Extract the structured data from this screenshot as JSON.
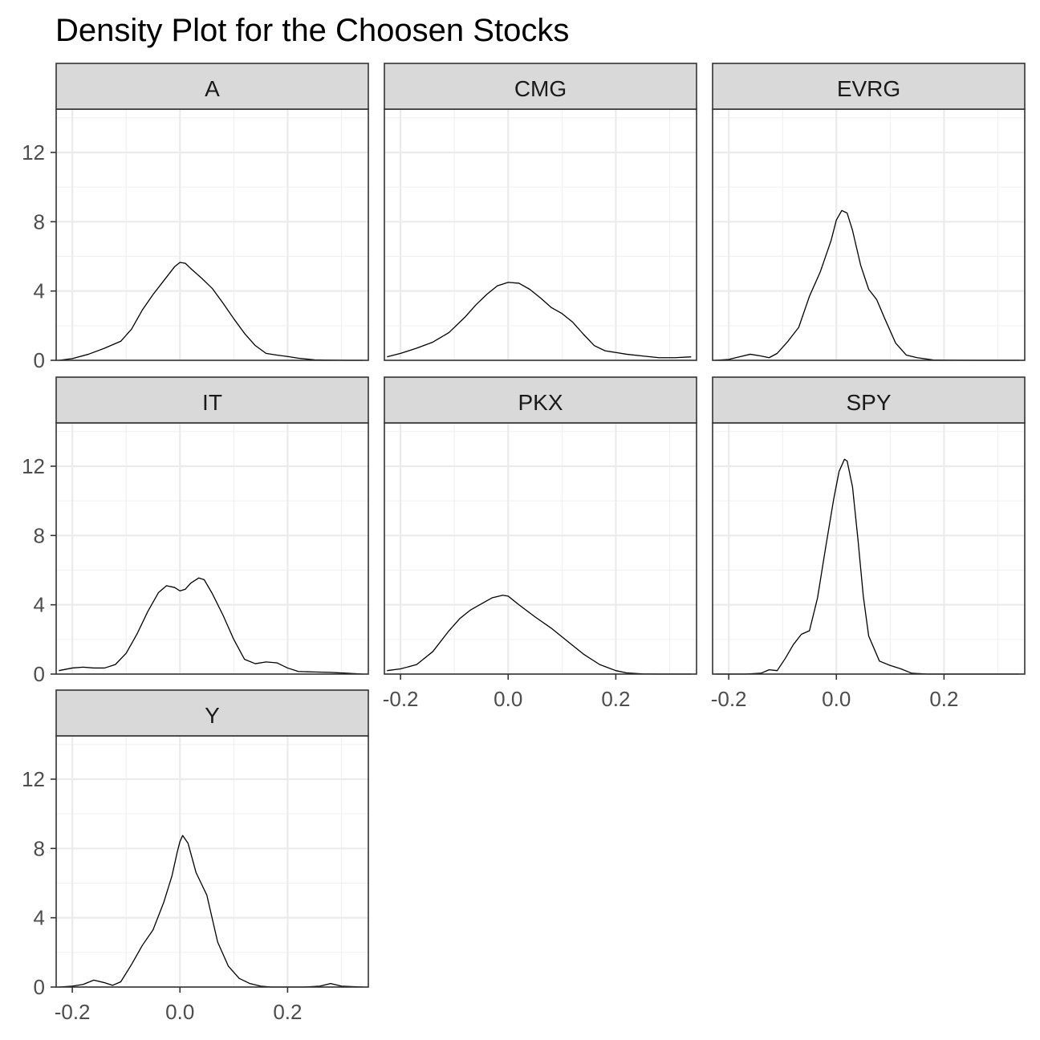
{
  "chart_data": {
    "type": "line",
    "title": "Density Plot for the Choosen Stocks",
    "xlabel": "",
    "ylabel": "",
    "xlim": [
      -0.23,
      0.35
    ],
    "ylim": [
      0,
      14.5
    ],
    "x_ticks": [
      -0.2,
      0.0,
      0.2
    ],
    "x_tick_labels": [
      "-0.2",
      "0.0",
      "0.2"
    ],
    "y_ticks": [
      0,
      4,
      8,
      12
    ],
    "y_tick_labels": [
      "0",
      "4",
      "8",
      "12"
    ],
    "grid": true,
    "legend": "none",
    "line_color": "#000000",
    "strip_fill": "#d9d9d9",
    "series": [
      {
        "name": "A",
        "x": [
          -0.225,
          -0.2,
          -0.17,
          -0.14,
          -0.11,
          -0.09,
          -0.07,
          -0.05,
          -0.03,
          -0.01,
          0.0,
          0.01,
          0.02,
          0.04,
          0.06,
          0.08,
          0.1,
          0.12,
          0.14,
          0.16,
          0.18,
          0.2,
          0.22,
          0.25,
          0.28,
          0.31,
          0.34
        ],
        "y": [
          0.0,
          0.1,
          0.35,
          0.7,
          1.1,
          1.8,
          2.9,
          3.8,
          4.6,
          5.4,
          5.65,
          5.6,
          5.3,
          4.75,
          4.15,
          3.3,
          2.4,
          1.55,
          0.85,
          0.4,
          0.3,
          0.22,
          0.12,
          0.03,
          0.01,
          0.0,
          0.0
        ]
      },
      {
        "name": "CMG",
        "x": [
          -0.225,
          -0.2,
          -0.17,
          -0.14,
          -0.11,
          -0.08,
          -0.06,
          -0.04,
          -0.02,
          0.0,
          0.02,
          0.04,
          0.06,
          0.08,
          0.1,
          0.12,
          0.14,
          0.16,
          0.18,
          0.2,
          0.22,
          0.25,
          0.28,
          0.31,
          0.34
        ],
        "y": [
          0.2,
          0.4,
          0.7,
          1.05,
          1.6,
          2.5,
          3.2,
          3.8,
          4.3,
          4.5,
          4.45,
          4.1,
          3.6,
          3.05,
          2.7,
          2.2,
          1.5,
          0.85,
          0.55,
          0.45,
          0.35,
          0.25,
          0.15,
          0.15,
          0.2
        ]
      },
      {
        "name": "EVRG",
        "x": [
          -0.225,
          -0.2,
          -0.18,
          -0.16,
          -0.14,
          -0.125,
          -0.11,
          -0.09,
          -0.07,
          -0.05,
          -0.03,
          -0.01,
          0.0,
          0.01,
          0.02,
          0.03,
          0.045,
          0.06,
          0.075,
          0.09,
          0.11,
          0.13,
          0.15,
          0.18,
          0.2,
          0.25,
          0.3,
          0.34
        ],
        "y": [
          0.0,
          0.05,
          0.2,
          0.35,
          0.25,
          0.15,
          0.4,
          1.1,
          1.9,
          3.7,
          5.1,
          6.9,
          8.1,
          8.65,
          8.5,
          7.5,
          5.5,
          4.1,
          3.5,
          2.4,
          1.0,
          0.3,
          0.15,
          0.02,
          0.01,
          0.0,
          0.0,
          0.0
        ]
      },
      {
        "name": "IT",
        "x": [
          -0.225,
          -0.2,
          -0.18,
          -0.16,
          -0.14,
          -0.12,
          -0.1,
          -0.08,
          -0.06,
          -0.04,
          -0.025,
          -0.01,
          0.0,
          0.01,
          0.02,
          0.035,
          0.045,
          0.06,
          0.08,
          0.1,
          0.12,
          0.14,
          0.16,
          0.18,
          0.2,
          0.22,
          0.25,
          0.28,
          0.31,
          0.34
        ],
        "y": [
          0.2,
          0.35,
          0.4,
          0.35,
          0.35,
          0.55,
          1.2,
          2.3,
          3.6,
          4.7,
          5.1,
          5.0,
          4.8,
          4.9,
          5.25,
          5.55,
          5.45,
          4.65,
          3.4,
          2.0,
          0.85,
          0.6,
          0.7,
          0.65,
          0.35,
          0.15,
          0.12,
          0.1,
          0.05,
          0.0
        ]
      },
      {
        "name": "PKX",
        "x": [
          -0.225,
          -0.2,
          -0.17,
          -0.14,
          -0.11,
          -0.09,
          -0.07,
          -0.05,
          -0.03,
          -0.01,
          0.0,
          0.02,
          0.05,
          0.08,
          0.11,
          0.14,
          0.17,
          0.2,
          0.22,
          0.25,
          0.28,
          0.31,
          0.34
        ],
        "y": [
          0.2,
          0.3,
          0.55,
          1.3,
          2.5,
          3.2,
          3.7,
          4.05,
          4.4,
          4.55,
          4.5,
          4.0,
          3.3,
          2.65,
          1.9,
          1.15,
          0.55,
          0.2,
          0.07,
          0.01,
          0.0,
          0.0,
          0.0
        ]
      },
      {
        "name": "SPY",
        "x": [
          -0.225,
          -0.2,
          -0.17,
          -0.14,
          -0.125,
          -0.11,
          -0.095,
          -0.08,
          -0.065,
          -0.05,
          -0.035,
          -0.02,
          -0.005,
          0.005,
          0.015,
          0.02,
          0.03,
          0.04,
          0.05,
          0.06,
          0.08,
          0.1,
          0.12,
          0.14,
          0.17,
          0.2,
          0.25,
          0.3,
          0.34
        ],
        "y": [
          0.0,
          0.0,
          0.0,
          0.05,
          0.25,
          0.2,
          0.9,
          1.7,
          2.3,
          2.5,
          4.4,
          7.3,
          10.1,
          11.7,
          12.4,
          12.3,
          10.8,
          7.8,
          4.5,
          2.2,
          0.75,
          0.5,
          0.3,
          0.05,
          0.0,
          0.0,
          0.0,
          0.0,
          0.0
        ]
      },
      {
        "name": "Y",
        "x": [
          -0.225,
          -0.2,
          -0.18,
          -0.16,
          -0.14,
          -0.125,
          -0.11,
          -0.09,
          -0.07,
          -0.05,
          -0.03,
          -0.015,
          -0.005,
          0.0,
          0.005,
          0.015,
          0.03,
          0.05,
          0.07,
          0.09,
          0.11,
          0.13,
          0.15,
          0.17,
          0.2,
          0.23,
          0.26,
          0.28,
          0.3,
          0.34
        ],
        "y": [
          0.0,
          0.05,
          0.15,
          0.4,
          0.25,
          0.1,
          0.3,
          1.3,
          2.4,
          3.3,
          4.9,
          6.4,
          7.8,
          8.4,
          8.75,
          8.3,
          6.6,
          5.3,
          2.6,
          1.2,
          0.5,
          0.2,
          0.05,
          0.0,
          0.0,
          0.0,
          0.05,
          0.2,
          0.05,
          0.0
        ]
      }
    ]
  }
}
